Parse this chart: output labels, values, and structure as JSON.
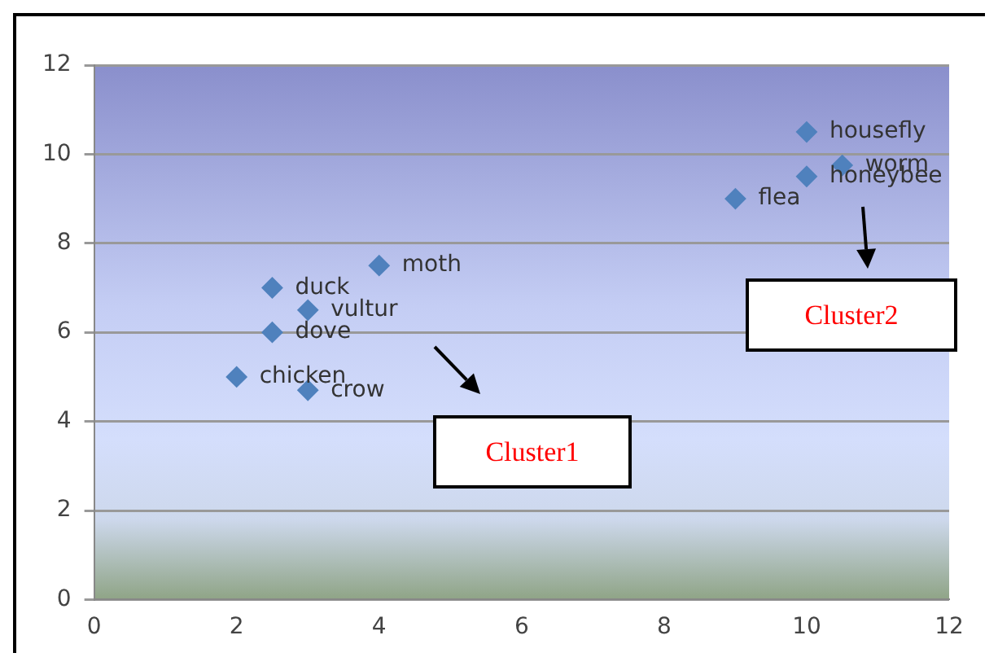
{
  "chart_data": {
    "type": "scatter",
    "marker": "diamond",
    "grid": "y",
    "legend": false,
    "series": [
      {
        "color": "#4f81bd",
        "x": [
          4,
          2.5,
          3,
          2.5,
          2,
          3,
          9,
          10,
          10,
          10.5
        ],
        "values": [
          7.5,
          7,
          6.5,
          6,
          5,
          4.7,
          9,
          10.5,
          9.5,
          9.75
        ]
      }
    ],
    "xlim": [
      0,
      12
    ],
    "xticks": [
      0,
      2,
      4,
      6,
      8,
      10,
      12
    ],
    "ylim": [
      0,
      12
    ],
    "yticks": [
      0,
      2,
      4,
      6,
      8,
      10,
      12
    ],
    "annotations": [
      {
        "text": "moth",
        "x": 4,
        "y": 7.5
      },
      {
        "text": "duck",
        "x": 2.5,
        "y": 7
      },
      {
        "text": "vultur",
        "x": 3,
        "y": 6.5
      },
      {
        "text": "dove",
        "x": 2.5,
        "y": 6
      },
      {
        "text": "chicken",
        "x": 2,
        "y": 5
      },
      {
        "text": "crow",
        "x": 3,
        "y": 4.7
      },
      {
        "text": "flea",
        "x": 9,
        "y": 9
      },
      {
        "text": "housefly",
        "x": 10,
        "y": 10.5
      },
      {
        "text": "honeybee",
        "x": 10,
        "y": 9.5
      },
      {
        "text": "worm",
        "x": 10.5,
        "y": 9.75
      },
      "Cluster1",
      "Cluster2"
    ]
  }
}
